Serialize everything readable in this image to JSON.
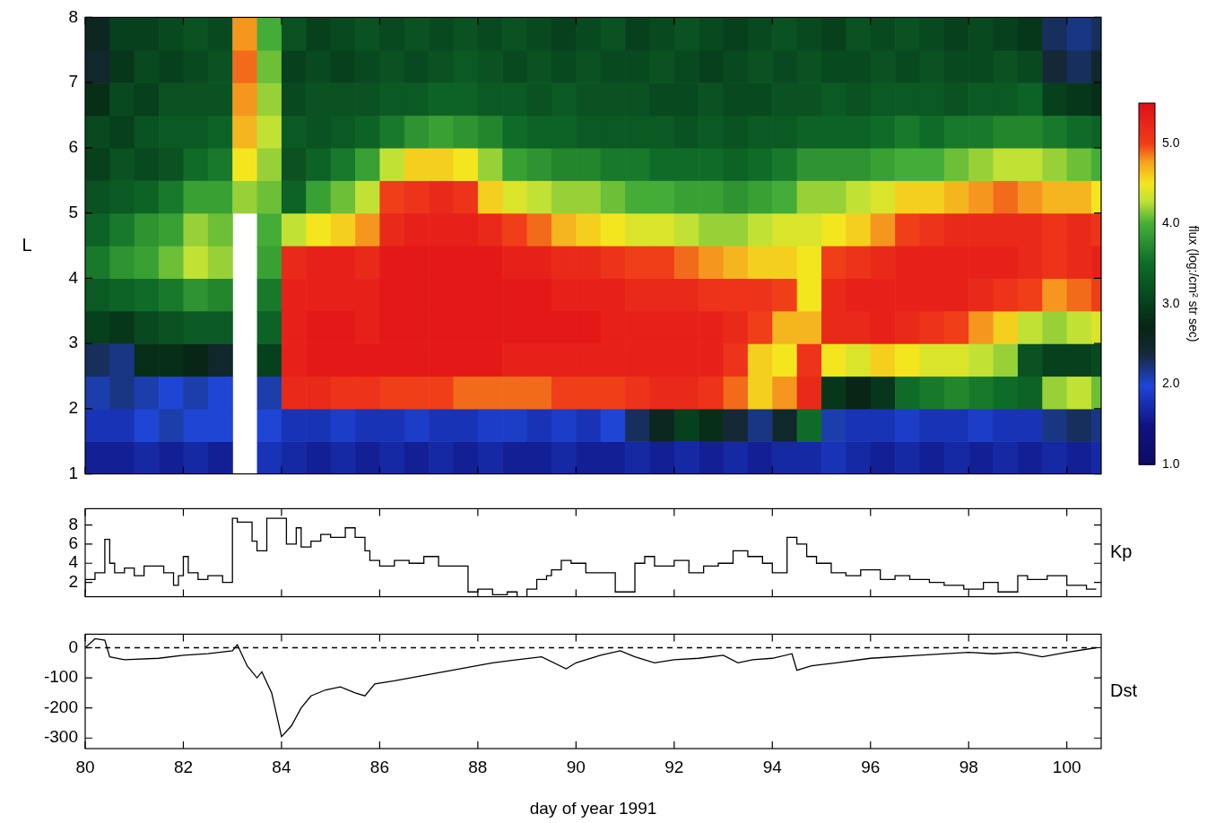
{
  "chart_data": [
    {
      "type": "heatmap",
      "ylabel": "L",
      "tick_labels": "y",
      "xlim": [
        80,
        100.7
      ],
      "xticks": [
        80,
        82,
        84,
        86,
        88,
        90,
        92,
        94,
        96,
        98,
        100
      ],
      "ylim": [
        1,
        8
      ],
      "yticks": [
        1,
        2,
        3,
        4,
        5,
        6,
        7,
        8
      ],
      "x_bins": [
        80,
        80.5,
        81,
        81.5,
        82,
        82.5,
        83,
        83.5,
        84,
        84.5,
        85,
        85.5,
        86,
        86.5,
        87,
        87.5,
        88,
        88.5,
        89,
        89.5,
        90,
        90.5,
        91,
        91.5,
        92,
        92.5,
        93,
        93.5,
        94,
        94.5,
        95,
        95.5,
        96,
        96.5,
        97,
        97.5,
        98,
        98.5,
        99,
        99.5,
        100,
        100.5,
        100.7
      ],
      "y_bins": [
        1,
        1.5,
        2,
        2.5,
        3,
        3.5,
        4,
        4.5,
        5,
        5.5,
        6,
        6.5,
        7,
        7.5,
        8
      ],
      "cells": [
        [
          1.6,
          1.8,
          2.1,
          2.3,
          3.0,
          3.3,
          3.6,
          3.4,
          3.2,
          3.0,
          3.1,
          2.8,
          2.5,
          2.6
        ],
        [
          1.6,
          1.8,
          2.2,
          2.2,
          2.9,
          3.4,
          3.8,
          3.6,
          3.3,
          3.2,
          3.0,
          3.1,
          2.9,
          3.0
        ],
        [
          1.7,
          2.0,
          2.1,
          2.8,
          3.1,
          3.5,
          3.9,
          3.8,
          3.4,
          3.1,
          3.2,
          3.0,
          3.1,
          3.0
        ],
        [
          1.6,
          2.1,
          2.0,
          2.8,
          3.2,
          3.6,
          4.1,
          3.9,
          3.6,
          3.2,
          3.3,
          3.2,
          3.0,
          3.1
        ],
        [
          1.7,
          2.0,
          2.1,
          2.7,
          3.3,
          3.8,
          4.3,
          4.2,
          3.9,
          3.5,
          3.3,
          3.2,
          3.1,
          3.2
        ],
        [
          1.6,
          2.0,
          2.0,
          2.5,
          3.3,
          3.7,
          4.2,
          4.1,
          3.9,
          3.6,
          3.4,
          3.2,
          3.2,
          3.1
        ],
        [
          null,
          null,
          null,
          null,
          null,
          null,
          null,
          null,
          4.2,
          4.5,
          4.7,
          4.8,
          4.9,
          4.8
        ],
        [
          1.8,
          2.0,
          2.1,
          3.0,
          3.4,
          3.6,
          3.9,
          4.0,
          4.1,
          4.2,
          4.3,
          4.2,
          4.1,
          4.0
        ],
        [
          1.7,
          1.8,
          5.2,
          5.3,
          5.3,
          5.3,
          5.2,
          4.3,
          3.4,
          3.2,
          3.3,
          3.1,
          3.0,
          3.2
        ],
        [
          1.6,
          1.8,
          5.2,
          5.4,
          5.4,
          5.3,
          5.3,
          4.5,
          3.9,
          3.4,
          3.2,
          3.2,
          3.1,
          3.0
        ],
        [
          1.7,
          1.9,
          5.1,
          5.4,
          5.4,
          5.3,
          5.3,
          4.6,
          4.1,
          3.6,
          3.3,
          3.2,
          3.0,
          3.1
        ],
        [
          1.6,
          1.8,
          5.1,
          5.4,
          5.3,
          5.3,
          5.2,
          4.8,
          4.3,
          3.9,
          3.4,
          3.2,
          3.1,
          3.2
        ],
        [
          1.7,
          1.8,
          5.0,
          5.4,
          5.4,
          5.4,
          5.4,
          5.2,
          5.0,
          4.3,
          3.6,
          3.3,
          3.2,
          3.1
        ],
        [
          1.6,
          1.9,
          5.0,
          5.4,
          5.4,
          5.4,
          5.4,
          5.3,
          5.1,
          4.6,
          3.8,
          3.3,
          3.1,
          3.2
        ],
        [
          1.7,
          1.8,
          5.0,
          5.4,
          5.4,
          5.4,
          5.4,
          5.3,
          5.2,
          4.6,
          3.9,
          3.4,
          3.2,
          3.1
        ],
        [
          1.6,
          1.8,
          4.9,
          5.4,
          5.4,
          5.4,
          5.4,
          5.3,
          5.1,
          4.5,
          3.8,
          3.4,
          3.3,
          3.2
        ],
        [
          1.7,
          1.9,
          4.9,
          5.4,
          5.4,
          5.4,
          5.4,
          5.2,
          4.6,
          4.2,
          3.7,
          3.3,
          3.2,
          3.1
        ],
        [
          1.6,
          1.9,
          4.9,
          5.3,
          5.4,
          5.4,
          5.3,
          5.0,
          4.4,
          3.9,
          3.5,
          3.3,
          3.1,
          3.2
        ],
        [
          1.6,
          1.8,
          4.9,
          5.3,
          5.4,
          5.4,
          5.3,
          4.9,
          4.3,
          3.8,
          3.4,
          3.2,
          3.2,
          3.1
        ],
        [
          1.7,
          1.9,
          5.0,
          5.3,
          5.4,
          5.3,
          5.2,
          4.7,
          4.2,
          3.7,
          3.4,
          3.3,
          3.1,
          3.0
        ],
        [
          1.6,
          1.8,
          5.0,
          5.3,
          5.4,
          5.3,
          5.2,
          4.6,
          4.2,
          3.7,
          3.3,
          3.2,
          3.2,
          3.1
        ],
        [
          1.6,
          2.0,
          5.0,
          5.3,
          5.3,
          5.3,
          5.1,
          4.5,
          4.1,
          3.6,
          3.3,
          3.2,
          3.1,
          3.2
        ],
        [
          1.7,
          2.3,
          5.1,
          5.3,
          5.3,
          5.2,
          5.0,
          4.4,
          4.0,
          3.6,
          3.3,
          3.2,
          3.1,
          3.0
        ],
        [
          1.6,
          2.6,
          5.2,
          5.3,
          5.3,
          5.2,
          5.0,
          4.4,
          4.0,
          3.5,
          3.3,
          3.1,
          3.2,
          3.1
        ],
        [
          1.7,
          3.0,
          5.2,
          5.3,
          5.3,
          5.2,
          4.9,
          4.3,
          3.9,
          3.5,
          3.2,
          3.1,
          3.1,
          3.2
        ],
        [
          1.6,
          2.8,
          5.1,
          5.3,
          5.3,
          5.1,
          4.8,
          4.2,
          3.9,
          3.5,
          3.3,
          3.2,
          3.0,
          3.1
        ],
        [
          1.7,
          2.4,
          4.9,
          5.1,
          5.2,
          5.1,
          4.7,
          4.2,
          3.8,
          3.4,
          3.2,
          3.1,
          3.1,
          3.0
        ],
        [
          1.6,
          2.2,
          4.6,
          4.6,
          5.0,
          5.1,
          4.6,
          4.3,
          3.9,
          3.5,
          3.3,
          3.1,
          3.2,
          3.1
        ],
        [
          1.7,
          2.5,
          4.8,
          4.5,
          4.7,
          5.0,
          4.6,
          4.4,
          4.0,
          3.6,
          3.3,
          3.2,
          3.1,
          3.2
        ],
        [
          1.7,
          3.5,
          5.2,
          5.1,
          4.7,
          4.5,
          4.5,
          4.4,
          4.2,
          3.8,
          3.4,
          3.2,
          3.2,
          3.1
        ],
        [
          1.8,
          2.1,
          2.9,
          4.5,
          5.2,
          5.2,
          5.0,
          4.5,
          4.2,
          3.8,
          3.4,
          3.3,
          3.1,
          3.0
        ],
        [
          1.7,
          1.8,
          2.7,
          4.4,
          5.2,
          5.3,
          5.1,
          4.6,
          4.3,
          3.8,
          3.4,
          3.2,
          3.1,
          3.2
        ],
        [
          1.6,
          1.8,
          2.9,
          4.6,
          5.3,
          5.3,
          5.2,
          4.8,
          4.4,
          3.9,
          3.5,
          3.3,
          3.2,
          3.1
        ],
        [
          1.7,
          1.9,
          3.5,
          4.5,
          5.2,
          5.3,
          5.3,
          5.0,
          4.6,
          4.0,
          3.6,
          3.3,
          3.1,
          3.2
        ],
        [
          1.6,
          1.8,
          3.6,
          4.4,
          5.1,
          5.3,
          5.3,
          5.1,
          4.6,
          4.0,
          3.5,
          3.3,
          3.2,
          3.1
        ],
        [
          1.7,
          1.8,
          3.7,
          4.4,
          5.0,
          5.3,
          5.3,
          5.2,
          4.7,
          4.1,
          3.6,
          3.2,
          3.1,
          3.0
        ],
        [
          1.6,
          1.9,
          3.6,
          4.3,
          4.8,
          5.2,
          5.3,
          5.2,
          4.8,
          4.2,
          3.6,
          3.3,
          3.1,
          3.1
        ],
        [
          1.7,
          1.8,
          3.5,
          4.2,
          4.6,
          5.1,
          5.3,
          5.2,
          4.9,
          4.3,
          3.7,
          3.3,
          3.2,
          3.0
        ],
        [
          1.6,
          1.8,
          3.4,
          3.2,
          4.3,
          5.0,
          5.2,
          5.2,
          4.8,
          4.3,
          3.7,
          3.4,
          3.1,
          2.9
        ],
        [
          1.7,
          2.2,
          4.2,
          3.0,
          4.2,
          4.8,
          5.1,
          5.1,
          4.7,
          4.2,
          3.6,
          3.0,
          2.4,
          2.3
        ],
        [
          1.6,
          2.3,
          4.3,
          3.0,
          4.3,
          4.9,
          5.2,
          5.2,
          4.7,
          4.1,
          3.5,
          2.9,
          2.3,
          2.2
        ],
        [
          1.7,
          2.2,
          4.1,
          3.1,
          4.4,
          5.0,
          5.3,
          5.1,
          4.5,
          4.0,
          3.4,
          2.8,
          2.5,
          2.3
        ]
      ],
      "colorbar": {
        "label": "flux (log:/cm² str sec)",
        "range": [
          1,
          5.5
        ],
        "ticks": [
          {
            "value": 1,
            "label": "1.0"
          },
          {
            "value": 2,
            "label": "2.0"
          },
          {
            "value": 3,
            "label": "3.0"
          },
          {
            "value": 4,
            "label": "4.0"
          },
          {
            "value": 5,
            "label": "5.0"
          }
        ]
      }
    },
    {
      "type": "line",
      "ylabel": "Kp",
      "tick_labels": "y",
      "xlim": [
        80,
        100.7
      ],
      "xticks": [
        80,
        82,
        84,
        86,
        88,
        90,
        92,
        94,
        96,
        98,
        100
      ],
      "ylim": [
        0.5,
        9.7
      ],
      "yticks": [
        2,
        4,
        6,
        8
      ],
      "series": [
        {
          "color": "#000000",
          "line_style": "steps",
          "x": [
            80.0,
            80.2,
            80.4,
            80.5,
            80.6,
            80.8,
            81.0,
            81.2,
            81.4,
            81.6,
            81.8,
            81.9,
            82.0,
            82.1,
            82.3,
            82.5,
            82.8,
            83.0,
            83.1,
            83.4,
            83.5,
            83.7,
            83.8,
            84.1,
            84.3,
            84.4,
            84.6,
            84.8,
            85.0,
            85.3,
            85.5,
            85.7,
            85.8,
            86.0,
            86.3,
            86.6,
            86.9,
            87.2,
            87.5,
            87.8,
            88.0,
            88.3,
            88.6,
            88.8,
            89.0,
            89.2,
            89.4,
            89.5,
            89.7,
            89.9,
            90.2,
            90.5,
            90.8,
            91.0,
            91.2,
            91.4,
            91.6,
            92.0,
            92.3,
            92.6,
            92.9,
            93.2,
            93.5,
            93.8,
            94.0,
            94.3,
            94.5,
            94.7,
            94.9,
            95.2,
            95.5,
            95.8,
            96.2,
            96.5,
            96.8,
            97.2,
            97.5,
            97.9,
            98.3,
            98.6,
            99.0,
            99.2,
            99.6,
            100.0,
            100.4,
            100.6
          ],
          "values": [
            1.0,
            2.3,
            3.0,
            6.5,
            4.0,
            3.0,
            3.5,
            2.7,
            3.7,
            3.7,
            3.0,
            1.7,
            2.7,
            4.7,
            3.0,
            2.3,
            2.7,
            2.0,
            8.7,
            8.3,
            6.3,
            5.3,
            8.7,
            8.7,
            6.0,
            7.7,
            5.7,
            6.3,
            7.0,
            6.7,
            7.7,
            6.7,
            5.3,
            4.3,
            3.7,
            4.3,
            4.0,
            4.7,
            3.7,
            3.7,
            1.0,
            1.3,
            0.7,
            1.0,
            0.5,
            1.3,
            2.3,
            2.7,
            3.3,
            4.3,
            4.0,
            3.0,
            3.0,
            1.0,
            1.0,
            4.0,
            4.7,
            3.7,
            4.3,
            3.0,
            3.7,
            4.0,
            5.3,
            4.7,
            4.0,
            3.0,
            6.7,
            6.0,
            4.7,
            4.0,
            3.0,
            2.7,
            3.3,
            2.3,
            2.7,
            2.3,
            2.0,
            1.7,
            1.3,
            2.0,
            1.0,
            2.7,
            2.3,
            2.7,
            1.7,
            1.3
          ]
        }
      ]
    },
    {
      "type": "line",
      "ylabel": "Dst",
      "xlabel": "day of year 1991",
      "xlim": [
        80,
        100.7
      ],
      "xticks": [
        80,
        82,
        84,
        86,
        88,
        90,
        92,
        94,
        96,
        98,
        100
      ],
      "ylim": [
        -335,
        45
      ],
      "yticks": [
        -300,
        -200,
        -100,
        0
      ],
      "series": [
        {
          "color": "#000000",
          "line_style": "solid",
          "x": [
            80.0,
            80.2,
            80.4,
            80.5,
            80.8,
            81.5,
            82.0,
            82.5,
            83.0,
            83.1,
            83.3,
            83.5,
            83.6,
            83.8,
            84.0,
            84.2,
            84.4,
            84.6,
            84.9,
            85.2,
            85.5,
            85.7,
            85.9,
            86.3,
            86.8,
            87.3,
            87.8,
            88.3,
            88.8,
            89.3,
            89.8,
            90.0,
            90.5,
            90.9,
            91.2,
            91.6,
            92.0,
            92.5,
            93.0,
            93.3,
            93.6,
            94.0,
            94.4,
            94.5,
            94.8,
            95.3,
            96.0,
            97.0,
            98.0,
            98.5,
            99.0,
            99.5,
            100.0,
            100.6
          ],
          "values": [
            0,
            30,
            25,
            -30,
            -40,
            -35,
            -25,
            -20,
            -10,
            10,
            -60,
            -100,
            -80,
            -150,
            -295,
            -260,
            -200,
            -160,
            -140,
            -130,
            -150,
            -160,
            -120,
            -110,
            -95,
            -80,
            -65,
            -50,
            -40,
            -30,
            -70,
            -50,
            -25,
            -10,
            -30,
            -50,
            -40,
            -35,
            -25,
            -50,
            -40,
            -35,
            -20,
            -75,
            -60,
            -50,
            -35,
            -25,
            -15,
            -20,
            -15,
            -30,
            -15,
            0
          ]
        },
        {
          "color": "#000000",
          "line_style": "dashed",
          "x": [
            80,
            100.7
          ],
          "values": [
            0,
            0
          ]
        }
      ]
    }
  ]
}
